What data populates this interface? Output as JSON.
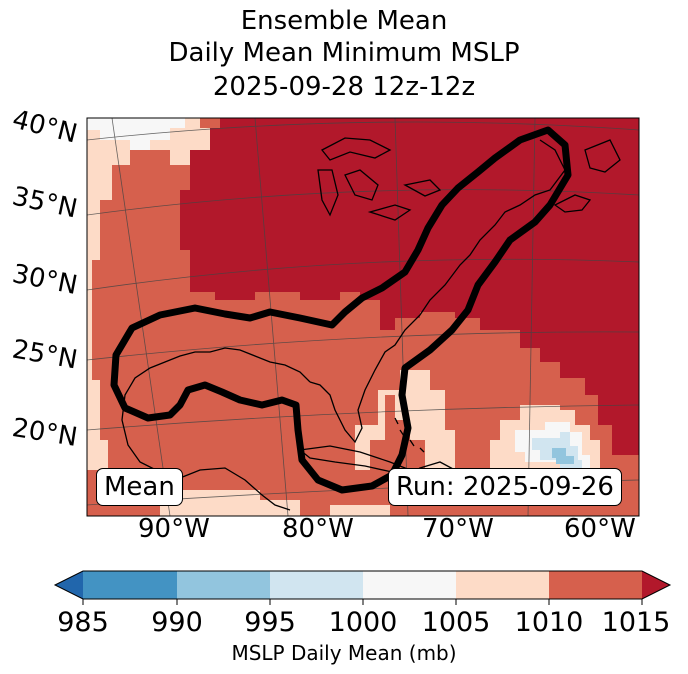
{
  "title": {
    "line1": "Ensemble Mean",
    "line2": "Daily Mean Minimum MSLP",
    "line3": "2025-09-28 12z-12z"
  },
  "badges": {
    "left": "Mean",
    "right": "Run: 2025-09-26"
  },
  "lat_labels": [
    "40°N",
    "35°N",
    "30°N",
    "25°N",
    "20°N"
  ],
  "lon_labels": [
    "90°W",
    "80°W",
    "70°W",
    "60°W"
  ],
  "colorbar": {
    "label": "MSLP Daily Mean (mb)",
    "ticks": [
      "985",
      "990",
      "995",
      "1000",
      "1005",
      "1010",
      "1015"
    ],
    "colors": [
      "#2166ac",
      "#4393c3",
      "#92c5de",
      "#d1e5f0",
      "#f7f7f7",
      "#fddbc7",
      "#d6604d",
      "#b2182b"
    ]
  },
  "fill_colors": {
    "dark_red": "#b2182b",
    "red": "#d6604d",
    "light": "#fddbc7",
    "white": "#f7f7f7",
    "pale_blue": "#d1e5f0",
    "blue": "#92c5de"
  }
}
